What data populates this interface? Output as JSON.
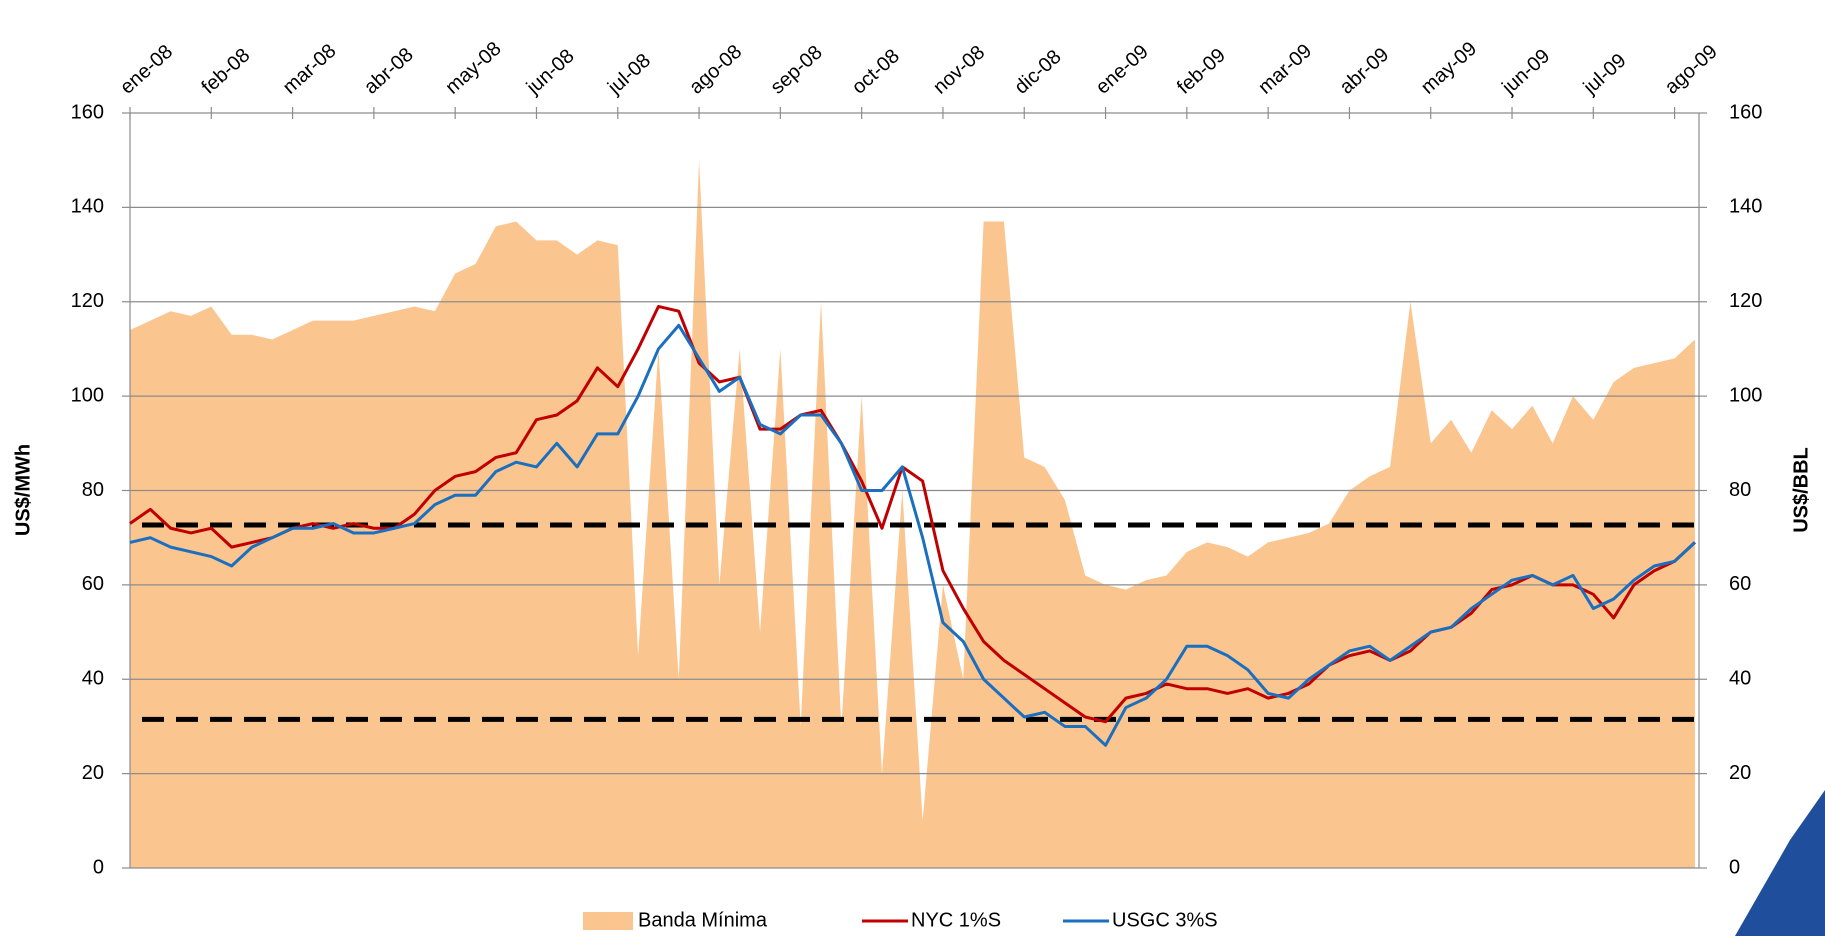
{
  "chart_data": {
    "type": "area-line",
    "y_label": "US$/MWh",
    "y2_label": "US$/BBL",
    "xlim": [
      0,
      19.3
    ],
    "xticks": [
      {
        "value": 0,
        "label": "ene-08"
      },
      {
        "value": 1,
        "label": "feb-08"
      },
      {
        "value": 2,
        "label": "mar-08"
      },
      {
        "value": 3,
        "label": "abr-08"
      },
      {
        "value": 4,
        "label": "may-08"
      },
      {
        "value": 5,
        "label": "jun-08"
      },
      {
        "value": 6,
        "label": "jul-08"
      },
      {
        "value": 7,
        "label": "ago-08"
      },
      {
        "value": 8,
        "label": "sep-08"
      },
      {
        "value": 9,
        "label": "oct-08"
      },
      {
        "value": 10,
        "label": "nov-08"
      },
      {
        "value": 11,
        "label": "dic-08"
      },
      {
        "value": 12,
        "label": "ene-09"
      },
      {
        "value": 13,
        "label": "feb-09"
      },
      {
        "value": 14,
        "label": "mar-09"
      },
      {
        "value": 15,
        "label": "abr-09"
      },
      {
        "value": 16,
        "label": "may-09"
      },
      {
        "value": 17,
        "label": "jun-09"
      },
      {
        "value": 18,
        "label": "jul-09"
      },
      {
        "value": 19,
        "label": "ago-09"
      }
    ],
    "ylim": [
      0,
      160
    ],
    "yticks": [
      0,
      20,
      40,
      60,
      80,
      100,
      120,
      140,
      160
    ],
    "y2lim": [
      0,
      160
    ],
    "y2ticks": [
      0,
      20,
      40,
      60,
      80,
      100,
      120,
      140,
      160
    ],
    "grid": true,
    "legend": "bottom",
    "reference_lines": [
      72.7,
      31.5
    ],
    "x": [
      0,
      0.25,
      0.5,
      0.75,
      1,
      1.25,
      1.5,
      1.75,
      2,
      2.25,
      2.5,
      2.75,
      3,
      3.25,
      3.5,
      3.75,
      4,
      4.25,
      4.5,
      4.75,
      5,
      5.25,
      5.5,
      5.75,
      6,
      6.25,
      6.5,
      6.75,
      7,
      7.25,
      7.5,
      7.75,
      8,
      8.25,
      8.5,
      8.75,
      9,
      9.25,
      9.5,
      9.75,
      10,
      10.25,
      10.5,
      10.75,
      11,
      11.25,
      11.5,
      11.75,
      12,
      12.25,
      12.5,
      12.75,
      13,
      13.25,
      13.5,
      13.75,
      14,
      14.25,
      14.5,
      14.75,
      15,
      15.25,
      15.5,
      15.75,
      16,
      16.25,
      16.5,
      16.75,
      17,
      17.25,
      17.5,
      17.75,
      18,
      18.25,
      18.5,
      18.75,
      19,
      19.25
    ],
    "series": [
      {
        "name": "Banda Mínima",
        "kind": "area",
        "color": "#fbc58f",
        "values": [
          114,
          116,
          118,
          117,
          119,
          113,
          113,
          112,
          114,
          116,
          116,
          116,
          117,
          118,
          119,
          118,
          126,
          128,
          136,
          137,
          133,
          133,
          130,
          133,
          132,
          45,
          110,
          40,
          150,
          60,
          110,
          50,
          110,
          30,
          120,
          30,
          100,
          20,
          80,
          10,
          60,
          40,
          137,
          137,
          87,
          85,
          78,
          62,
          60,
          59,
          61,
          62,
          67,
          69,
          68,
          66,
          69,
          70,
          71,
          73,
          80,
          83,
          85,
          120,
          90,
          95,
          88,
          97,
          93,
          98,
          90,
          100,
          95,
          103,
          106,
          107,
          108,
          112
        ]
      },
      {
        "name": "NYC 1%S",
        "kind": "line",
        "axis": "y2",
        "color": "#c00000",
        "values": [
          73,
          76,
          72,
          71,
          72,
          68,
          69,
          70,
          72,
          73,
          72,
          73,
          72,
          72,
          75,
          80,
          83,
          84,
          87,
          88,
          95,
          96,
          99,
          106,
          102,
          110,
          119,
          118,
          107,
          103,
          104,
          93,
          93,
          96,
          97,
          90,
          82,
          72,
          85,
          82,
          63,
          55,
          48,
          44,
          41,
          38,
          35,
          32,
          31,
          36,
          37,
          39,
          38,
          38,
          37,
          38,
          36,
          37,
          39,
          43,
          45,
          46,
          44,
          46,
          50,
          51,
          54,
          59,
          60,
          62,
          60,
          60,
          58,
          53,
          60,
          63,
          65,
          69
        ]
      },
      {
        "name": "USGC 3%S",
        "kind": "line",
        "axis": "y2",
        "color": "#1b6fbf",
        "values": [
          69,
          70,
          68,
          67,
          66,
          64,
          68,
          70,
          72,
          72,
          73,
          71,
          71,
          72,
          73,
          77,
          79,
          79,
          84,
          86,
          85,
          90,
          85,
          92,
          92,
          100,
          110,
          115,
          108,
          101,
          104,
          94,
          92,
          96,
          96,
          90,
          80,
          80,
          85,
          70,
          52,
          48,
          40,
          36,
          32,
          33,
          30,
          30,
          26,
          34,
          36,
          40,
          47,
          47,
          45,
          42,
          37,
          36,
          40,
          43,
          46,
          47,
          44,
          47,
          50,
          51,
          55,
          58,
          61,
          62,
          60,
          62,
          55,
          57,
          61,
          64,
          65,
          69
        ]
      }
    ]
  }
}
